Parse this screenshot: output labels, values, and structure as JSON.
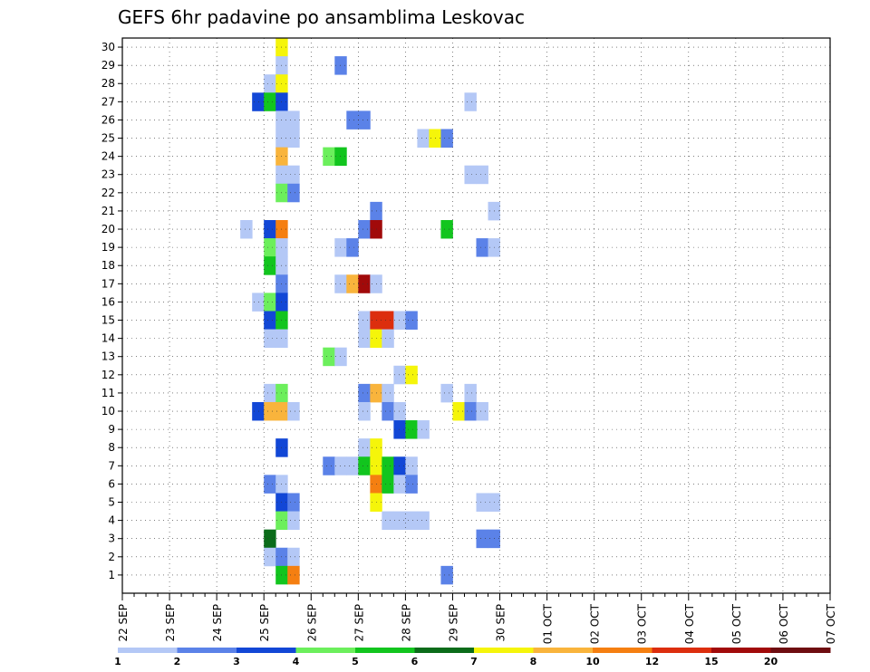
{
  "chart_data": {
    "type": "heatmap",
    "title": "GEFS 6hr padavine po ansamblima Leskovac",
    "x_tick_labels": [
      "22 SEP",
      "23 SEP",
      "24 SEP",
      "25 SEP",
      "26 SEP",
      "27 SEP",
      "28 SEP",
      "29 SEP",
      "30 SEP",
      "01 OCT",
      "02 OCT",
      "03 OCT",
      "04 OCT",
      "05 OCT",
      "06 OCT",
      "07 OCT"
    ],
    "x_steps_per_day": 4,
    "y_members": [
      1,
      2,
      3,
      4,
      5,
      6,
      7,
      8,
      9,
      10,
      11,
      12,
      13,
      14,
      15,
      16,
      17,
      18,
      19,
      20,
      21,
      22,
      23,
      24,
      25,
      26,
      27,
      28,
      29,
      30
    ],
    "grid": true,
    "colorbar": {
      "levels": [
        "1",
        "2",
        "3",
        "4",
        "5",
        "6",
        "7",
        "8",
        "10",
        "12",
        "15",
        "20"
      ],
      "colors": [
        "#b4c8f6",
        "#5b82e8",
        "#1247d6",
        "#6cef5c",
        "#12c51e",
        "#0b6c1a",
        "#f5f50a",
        "#f9b43c",
        "#f57f11",
        "#dc2e0e",
        "#a10a0a",
        "#6e0c10"
      ]
    },
    "cells": [
      [
        4,
        30,
        6
      ],
      [
        4,
        29,
        0
      ],
      [
        9,
        29,
        1
      ],
      [
        3,
        28,
        0
      ],
      [
        4,
        28,
        6
      ],
      [
        2,
        27,
        2
      ],
      [
        3,
        27,
        4
      ],
      [
        4,
        27,
        2
      ],
      [
        20,
        27,
        0
      ],
      [
        4,
        26,
        0
      ],
      [
        5,
        26,
        0
      ],
      [
        10,
        26,
        1
      ],
      [
        11,
        26,
        1
      ],
      [
        4,
        25,
        0
      ],
      [
        5,
        25,
        0
      ],
      [
        16,
        25,
        0
      ],
      [
        17,
        25,
        6
      ],
      [
        18,
        25,
        1
      ],
      [
        4,
        24,
        7
      ],
      [
        8,
        24,
        3
      ],
      [
        9,
        24,
        4
      ],
      [
        4,
        23,
        0
      ],
      [
        5,
        23,
        0
      ],
      [
        20,
        23,
        0
      ],
      [
        21,
        23,
        0
      ],
      [
        4,
        22,
        3
      ],
      [
        5,
        22,
        1
      ],
      [
        12,
        21,
        1
      ],
      [
        22,
        21,
        0
      ],
      [
        1,
        20,
        0
      ],
      [
        3,
        20,
        2
      ],
      [
        4,
        20,
        8
      ],
      [
        11,
        20,
        1
      ],
      [
        12,
        20,
        10
      ],
      [
        18,
        20,
        4
      ],
      [
        3,
        19,
        3
      ],
      [
        4,
        19,
        0
      ],
      [
        9,
        19,
        0
      ],
      [
        10,
        19,
        1
      ],
      [
        21,
        19,
        1
      ],
      [
        22,
        19,
        0
      ],
      [
        3,
        18,
        4
      ],
      [
        4,
        18,
        0
      ],
      [
        4,
        17,
        1
      ],
      [
        9,
        17,
        0
      ],
      [
        10,
        17,
        7
      ],
      [
        11,
        17,
        10
      ],
      [
        12,
        17,
        0
      ],
      [
        2,
        16,
        0
      ],
      [
        3,
        16,
        3
      ],
      [
        4,
        16,
        2
      ],
      [
        3,
        15,
        2
      ],
      [
        4,
        15,
        4
      ],
      [
        11,
        15,
        0
      ],
      [
        12,
        15,
        9
      ],
      [
        13,
        15,
        9
      ],
      [
        14,
        15,
        0
      ],
      [
        15,
        15,
        1
      ],
      [
        3,
        14,
        0
      ],
      [
        4,
        14,
        0
      ],
      [
        11,
        14,
        0
      ],
      [
        12,
        14,
        6
      ],
      [
        13,
        14,
        0
      ],
      [
        8,
        13,
        3
      ],
      [
        9,
        13,
        0
      ],
      [
        14,
        12,
        0
      ],
      [
        15,
        12,
        6
      ],
      [
        3,
        11,
        0
      ],
      [
        4,
        11,
        3
      ],
      [
        11,
        11,
        1
      ],
      [
        12,
        11,
        7
      ],
      [
        13,
        11,
        0
      ],
      [
        18,
        11,
        0
      ],
      [
        20,
        11,
        0
      ],
      [
        2,
        10,
        2
      ],
      [
        3,
        10,
        7
      ],
      [
        4,
        10,
        7
      ],
      [
        5,
        10,
        0
      ],
      [
        11,
        10,
        0
      ],
      [
        13,
        10,
        1
      ],
      [
        14,
        10,
        0
      ],
      [
        19,
        10,
        6
      ],
      [
        20,
        10,
        1
      ],
      [
        21,
        10,
        0
      ],
      [
        14,
        9,
        2
      ],
      [
        15,
        9,
        4
      ],
      [
        16,
        9,
        0
      ],
      [
        4,
        8,
        2
      ],
      [
        11,
        8,
        0
      ],
      [
        12,
        8,
        6
      ],
      [
        8,
        7,
        1
      ],
      [
        9,
        7,
        0
      ],
      [
        10,
        7,
        0
      ],
      [
        11,
        7,
        4
      ],
      [
        12,
        7,
        6
      ],
      [
        13,
        7,
        4
      ],
      [
        14,
        7,
        2
      ],
      [
        15,
        7,
        0
      ],
      [
        3,
        6,
        1
      ],
      [
        4,
        6,
        0
      ],
      [
        12,
        6,
        8
      ],
      [
        13,
        6,
        4
      ],
      [
        14,
        6,
        0
      ],
      [
        15,
        6,
        1
      ],
      [
        4,
        5,
        2
      ],
      [
        5,
        5,
        1
      ],
      [
        12,
        5,
        6
      ],
      [
        21,
        5,
        0
      ],
      [
        22,
        5,
        0
      ],
      [
        4,
        4,
        3
      ],
      [
        5,
        4,
        0
      ],
      [
        13,
        4,
        0
      ],
      [
        14,
        4,
        0
      ],
      [
        15,
        4,
        0
      ],
      [
        16,
        4,
        0
      ],
      [
        3,
        3,
        5
      ],
      [
        21,
        3,
        1
      ],
      [
        22,
        3,
        1
      ],
      [
        3,
        2,
        0
      ],
      [
        4,
        2,
        1
      ],
      [
        5,
        2,
        0
      ],
      [
        4,
        1,
        4
      ],
      [
        5,
        1,
        8
      ],
      [
        18,
        1,
        1
      ]
    ]
  }
}
